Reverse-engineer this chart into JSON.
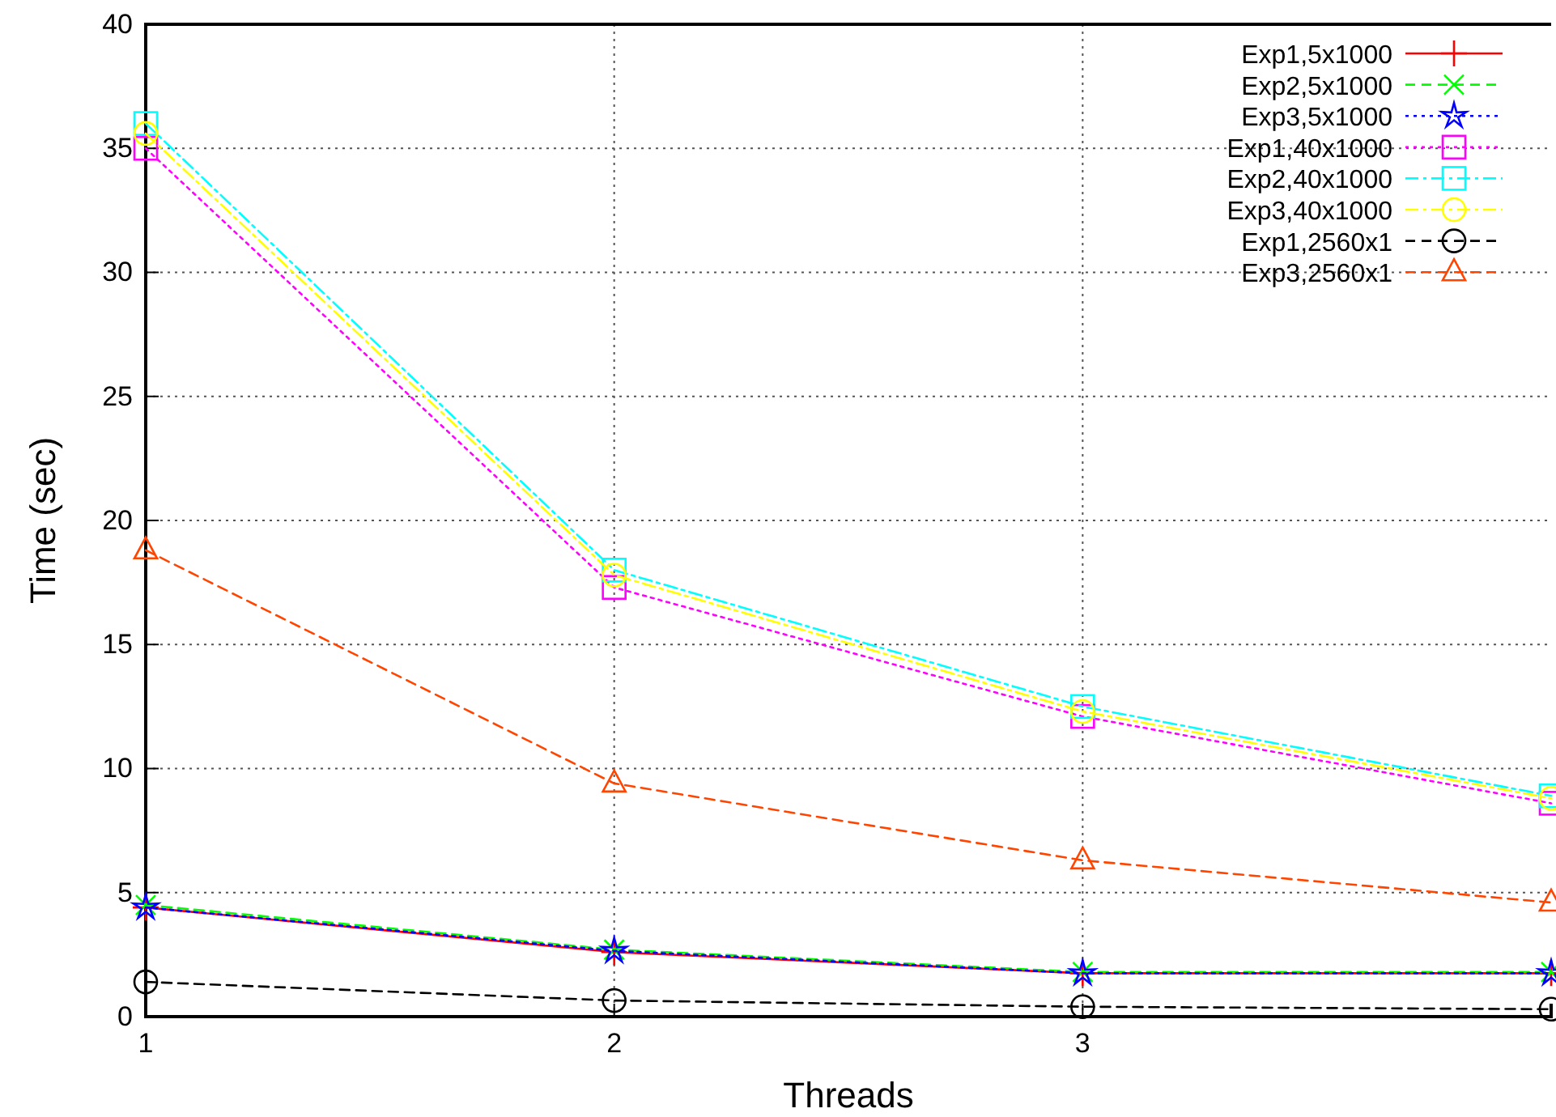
{
  "chart_data": {
    "type": "line",
    "xlabel": "Threads",
    "ylabel": "Time (sec)",
    "x": [
      1,
      2,
      3,
      4
    ],
    "xlim": [
      1,
      4
    ],
    "xticks": [
      1,
      2,
      3
    ],
    "ylim": [
      0,
      40
    ],
    "yticks": [
      0,
      5,
      10,
      15,
      20,
      25,
      30,
      35,
      40
    ],
    "grid": true,
    "legend": "top right",
    "series": [
      {
        "name": "Exp1,5x1000",
        "color": "#ff0000",
        "line_style": "solid",
        "marker": "plus",
        "values": [
          4.4,
          2.6,
          1.75,
          1.75
        ]
      },
      {
        "name": "Exp2,5x1000",
        "color": "#00ff00",
        "line_style": "dashed",
        "marker": "cross",
        "values": [
          4.5,
          2.7,
          1.8,
          1.8
        ]
      },
      {
        "name": "Exp3,5x1000",
        "color": "#0000ff",
        "line_style": "dotted",
        "marker": "star",
        "values": [
          4.4,
          2.65,
          1.75,
          1.75
        ]
      },
      {
        "name": "Exp1,40x1000",
        "color": "#ff00ff",
        "line_style": "dotted",
        "marker": "square",
        "values": [
          35.0,
          17.3,
          12.1,
          8.6
        ]
      },
      {
        "name": "Exp2,40x1000",
        "color": "#00ffff",
        "line_style": "dashdot",
        "marker": "square",
        "values": [
          36.0,
          18.0,
          12.5,
          8.9
        ]
      },
      {
        "name": "Exp3,40x1000",
        "color": "#ffff00",
        "line_style": "dashdot",
        "marker": "circle",
        "values": [
          35.6,
          17.8,
          12.3,
          8.8
        ]
      },
      {
        "name": "Exp1,2560x1",
        "color": "#000000",
        "line_style": "dashed",
        "marker": "circle",
        "values": [
          1.4,
          0.65,
          0.4,
          0.3
        ]
      },
      {
        "name": "Exp3,2560x1",
        "color": "#ff4500",
        "line_style": "dashed",
        "marker": "triangle",
        "values": [
          18.8,
          9.4,
          6.3,
          4.6
        ]
      }
    ]
  }
}
